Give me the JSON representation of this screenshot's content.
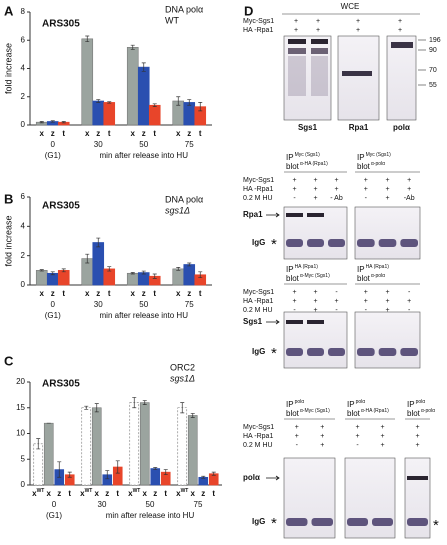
{
  "chart_data": [
    {
      "type": "bar",
      "panel_label": "A",
      "title": "ARS305",
      "annotation": [
        "DNA polα",
        "WT"
      ],
      "annotation_italic": [
        false,
        false
      ],
      "ylabel": "fold increase",
      "categories": [
        "0",
        "30",
        "50",
        "75"
      ],
      "category_note": "(G1)",
      "xlabel": "min after release into HU",
      "ylim": [
        0,
        8
      ],
      "yticks": [
        0,
        2,
        4,
        6,
        8
      ],
      "series": [
        {
          "name": "x",
          "color": "#9ba49f",
          "values": [
            0.2,
            6.1,
            5.5,
            1.7
          ],
          "errors": [
            0.05,
            0.2,
            0.15,
            0.3
          ]
        },
        {
          "name": "z",
          "color": "#2a4fb0",
          "values": [
            0.25,
            1.7,
            4.1,
            1.6
          ],
          "errors": [
            0.05,
            0.1,
            0.3,
            0.2
          ]
        },
        {
          "name": "t",
          "color": "#e8452a",
          "values": [
            0.2,
            1.6,
            1.4,
            1.3
          ],
          "errors": [
            0.05,
            0.05,
            0.1,
            0.3
          ]
        }
      ]
    },
    {
      "type": "bar",
      "panel_label": "B",
      "title": "ARS305",
      "annotation": [
        "DNA polα",
        "sgs1Δ"
      ],
      "annotation_italic": [
        false,
        true
      ],
      "ylabel": "fold increase",
      "categories": [
        "0",
        "30",
        "50",
        "75"
      ],
      "category_note": "(G1)",
      "xlabel": "min after release into HU",
      "ylim": [
        0,
        6
      ],
      "yticks": [
        0,
        2,
        4,
        6
      ],
      "series": [
        {
          "name": "x",
          "color": "#9ba49f",
          "values": [
            1.0,
            1.8,
            0.8,
            1.1
          ],
          "errors": [
            0.05,
            0.3,
            0.05,
            0.1
          ]
        },
        {
          "name": "z",
          "color": "#2a4fb0",
          "values": [
            0.8,
            2.9,
            0.85,
            1.4
          ],
          "errors": [
            0.1,
            0.3,
            0.1,
            0.1
          ]
        },
        {
          "name": "t",
          "color": "#e8452a",
          "values": [
            1.0,
            1.1,
            0.6,
            0.7
          ],
          "errors": [
            0.1,
            0.15,
            0.15,
            0.2
          ]
        }
      ]
    },
    {
      "type": "bar",
      "panel_label": "C",
      "title": "ARS305",
      "annotation": [
        "ORC2",
        "sgs1Δ"
      ],
      "annotation_italic": [
        false,
        true
      ],
      "categories": [
        "0",
        "30",
        "50",
        "75"
      ],
      "category_note": "(G1)",
      "xlabel": "min  after  release into HU",
      "ylim": [
        0,
        20
      ],
      "yticks": [
        0,
        5,
        10,
        15,
        20
      ],
      "series": [
        {
          "name": "x",
          "name_sup": "WT",
          "color": "#ffffff",
          "dashed": true,
          "values": [
            8,
            15,
            16,
            15
          ],
          "errors": [
            1,
            0.3,
            1,
            1
          ]
        },
        {
          "name": "x",
          "color": "#9ba49f",
          "values": [
            12,
            15,
            16,
            13.5
          ],
          "errors": [
            0,
            0.8,
            0.4,
            0.4
          ]
        },
        {
          "name": "z",
          "color": "#2a4fb0",
          "values": [
            3,
            2,
            3.2,
            1.5
          ],
          "errors": [
            1.5,
            0.8,
            0.2,
            0.2
          ]
        },
        {
          "name": "t",
          "color": "#e8452a",
          "values": [
            2,
            3.5,
            2.5,
            2.2
          ],
          "errors": [
            0.5,
            1.2,
            0.5,
            0.3
          ]
        }
      ]
    }
  ],
  "panel_d": {
    "label": "D",
    "wce": {
      "title": "WCE",
      "rows": [
        {
          "label": "Myc-Sgs1",
          "signs": [
            "+",
            "+",
            "+",
            "+"
          ]
        },
        {
          "label": "HA -Rpa1",
          "signs": [
            "+",
            "+",
            "+",
            "+"
          ]
        }
      ],
      "blots": [
        "Sgs1",
        "Rpa1",
        "polα"
      ],
      "markers": [
        "196",
        "90",
        "70",
        "55"
      ]
    },
    "ip_blocks": [
      {
        "headers": [
          {
            "ip": "IP",
            "ip_sup": "Myc (Sgs1)",
            "blot": "blot",
            "blot_sup": "α-HA (Rpa1)"
          },
          {
            "ip": "IP",
            "ip_sup": "Myc (Sgs1)",
            "blot": "blot",
            "blot_sup": "α-polα"
          }
        ],
        "rows": [
          {
            "label": "Myc-Sgs1",
            "signs": [
              [
                "+",
                "+",
                "+"
              ],
              [
                "+",
                "+",
                "+"
              ]
            ]
          },
          {
            "label": "HA -Rpa1",
            "signs": [
              [
                "+",
                "+",
                "+"
              ],
              [
                "+",
                "+",
                "+"
              ]
            ]
          },
          {
            "label": "0.2 M HU",
            "signs": [
              [
                "-",
                "+",
                "- Ab"
              ],
              [
                "-",
                "+",
                "-Ab"
              ]
            ]
          }
        ],
        "bands": [
          "Rpa1",
          "IgG"
        ],
        "asterisk": "*"
      },
      {
        "headers": [
          {
            "ip": "IP",
            "ip_sup": "HA (Rpa1)",
            "blot": "blot",
            "blot_sup": "α-Myc (Sgs1)"
          },
          {
            "ip": "IP",
            "ip_sup": "HA (Rpa1)",
            "blot": "blot",
            "blot_sup": "α-polα"
          }
        ],
        "rows": [
          {
            "label": "Myc-Sgs1",
            "signs": [
              [
                "+",
                "+",
                "-"
              ],
              [
                "+",
                "+",
                "-"
              ]
            ]
          },
          {
            "label": "HA -Rpa1",
            "signs": [
              [
                "+",
                "+",
                "+"
              ],
              [
                "+",
                "+",
                "+"
              ]
            ]
          },
          {
            "label": "0.2 M HU",
            "signs": [
              [
                "-",
                "+",
                "-"
              ],
              [
                "-",
                "+",
                "-"
              ]
            ]
          }
        ],
        "bands": [
          "Sgs1",
          "IgG"
        ],
        "asterisk": "*"
      },
      {
        "headers": [
          {
            "ip": "IP",
            "ip_sup": "polα",
            "blot": "blot",
            "blot_sup": "α-Myc (Sgs1)"
          },
          {
            "ip": "IP",
            "ip_sup": "polα",
            "blot": "blot",
            "blot_sup": "α-HA (Rpa1)"
          },
          {
            "ip": "IP",
            "ip_sup": "polα",
            "blot": "blot",
            "blot_sup": "α-polα"
          }
        ],
        "rows": [
          {
            "label": "Myc-Sgs1",
            "signs": [
              [
                "+",
                "+"
              ],
              [
                "+",
                "+"
              ],
              [
                "+"
              ]
            ]
          },
          {
            "label": "HA -Rpa1",
            "signs": [
              [
                "+",
                "+"
              ],
              [
                "+",
                "+"
              ],
              [
                "+"
              ]
            ]
          },
          {
            "label": "0.2 M HU",
            "signs": [
              [
                "-",
                "+"
              ],
              [
                "-",
                "+"
              ],
              [
                "+"
              ]
            ]
          }
        ],
        "bands": [
          "polα",
          "IgG"
        ],
        "asterisk": "*",
        "extra_asterisk": "*"
      }
    ]
  }
}
